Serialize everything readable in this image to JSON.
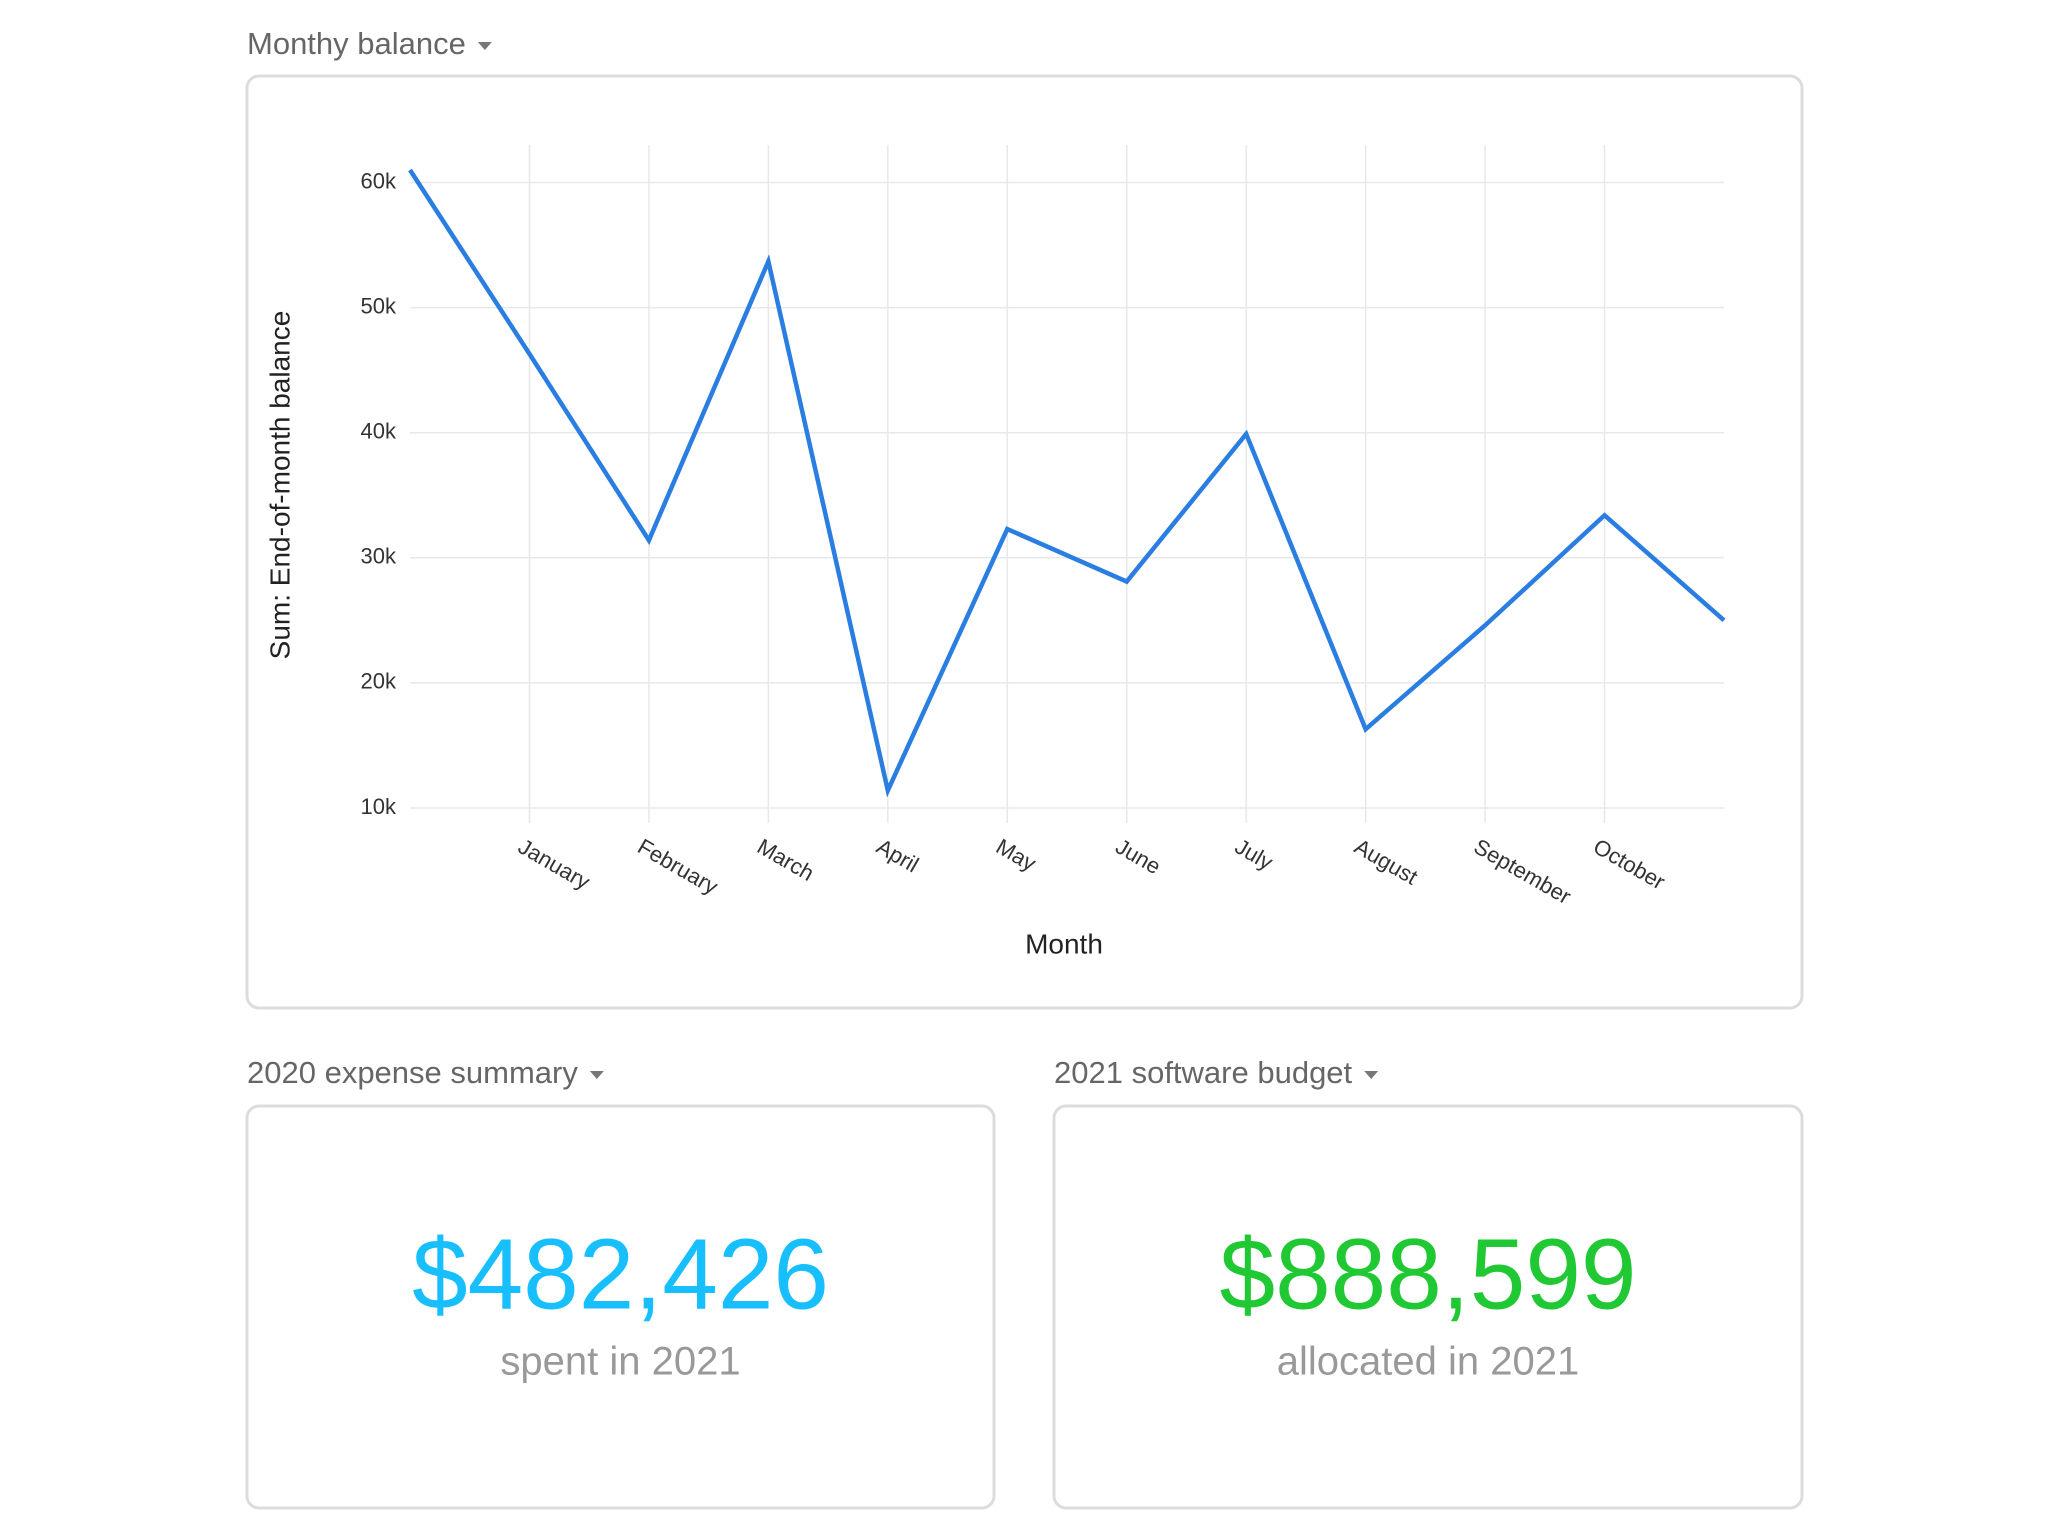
{
  "chart_data": {
    "type": "line",
    "title": "Monthy balance",
    "x_label": "Month",
    "y_label": "Sum: End-of-month balance",
    "categories": [
      null,
      "January",
      "February",
      "March",
      "April",
      "May",
      "June",
      "July",
      "August",
      "September",
      "October",
      null
    ],
    "series": [
      {
        "name": "Sum: End-of-month balance",
        "color": "#2a7de1",
        "values": [
          61000,
          46300,
          31400,
          53700,
          11400,
          32300,
          28100,
          39900,
          16300,
          24600,
          33400,
          25000
        ]
      }
    ],
    "ylim": [
      10000,
      63000
    ],
    "yticks": [
      {
        "value": 10000,
        "label": "10k"
      },
      {
        "value": 20000,
        "label": "20k"
      },
      {
        "value": 30000,
        "label": "30k"
      },
      {
        "value": 40000,
        "label": "40k"
      },
      {
        "value": 50000,
        "label": "50k"
      },
      {
        "value": 60000,
        "label": "60k"
      }
    ],
    "grid": true
  },
  "widgets": [
    {
      "title": "2020 expense summary",
      "value": "$482,426",
      "caption": "spent in 2021",
      "color": "#18bfff"
    },
    {
      "title": "2021 software budget",
      "value": "$888,599",
      "caption": "allocated in 2021",
      "color": "#20c933"
    }
  ]
}
